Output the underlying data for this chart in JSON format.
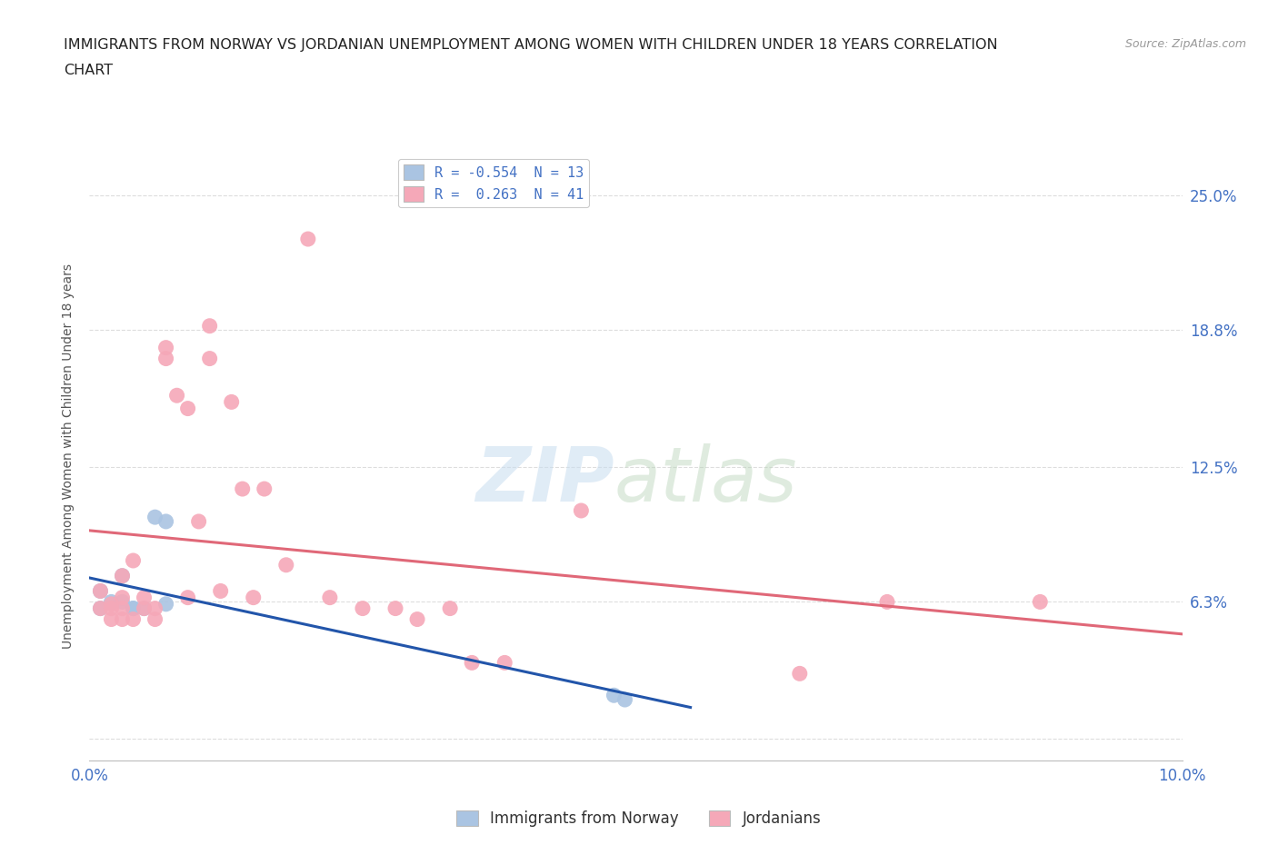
{
  "title_line1": "IMMIGRANTS FROM NORWAY VS JORDANIAN UNEMPLOYMENT AMONG WOMEN WITH CHILDREN UNDER 18 YEARS CORRELATION",
  "title_line2": "CHART",
  "source": "Source: ZipAtlas.com",
  "ylabel": "Unemployment Among Women with Children Under 18 years",
  "watermark_zip": "ZIP",
  "watermark_atlas": "atlas",
  "xlim": [
    0.0,
    0.1
  ],
  "ylim": [
    -0.01,
    0.27
  ],
  "yticks": [
    0.0,
    0.063,
    0.125,
    0.188,
    0.25
  ],
  "ytick_labels": [
    "",
    "6.3%",
    "12.5%",
    "18.8%",
    "25.0%"
  ],
  "xticks": [
    0.0,
    0.025,
    0.05,
    0.075,
    0.1
  ],
  "xtick_labels": [
    "0.0%",
    "",
    "",
    "",
    "10.0%"
  ],
  "norway_R": -0.554,
  "norway_N": 13,
  "jordan_R": 0.263,
  "jordan_N": 41,
  "norway_color": "#aac4e2",
  "jordan_color": "#f5a8b8",
  "norway_line_color": "#2255aa",
  "jordan_line_color": "#e06878",
  "norway_x": [
    0.001,
    0.001,
    0.002,
    0.003,
    0.003,
    0.004,
    0.004,
    0.005,
    0.006,
    0.007,
    0.007,
    0.048,
    0.049
  ],
  "norway_y": [
    0.068,
    0.06,
    0.063,
    0.075,
    0.063,
    0.06,
    0.06,
    0.06,
    0.102,
    0.1,
    0.062,
    0.02,
    0.018
  ],
  "jordan_x": [
    0.001,
    0.001,
    0.002,
    0.002,
    0.002,
    0.003,
    0.003,
    0.003,
    0.003,
    0.004,
    0.004,
    0.005,
    0.005,
    0.006,
    0.006,
    0.007,
    0.007,
    0.008,
    0.009,
    0.009,
    0.01,
    0.011,
    0.011,
    0.012,
    0.013,
    0.014,
    0.015,
    0.016,
    0.018,
    0.02,
    0.022,
    0.025,
    0.028,
    0.03,
    0.033,
    0.035,
    0.038,
    0.045,
    0.065,
    0.073,
    0.087
  ],
  "jordan_y": [
    0.06,
    0.068,
    0.055,
    0.06,
    0.062,
    0.055,
    0.06,
    0.065,
    0.075,
    0.055,
    0.082,
    0.06,
    0.065,
    0.055,
    0.06,
    0.175,
    0.18,
    0.158,
    0.065,
    0.152,
    0.1,
    0.175,
    0.19,
    0.068,
    0.155,
    0.115,
    0.065,
    0.115,
    0.08,
    0.23,
    0.065,
    0.06,
    0.06,
    0.055,
    0.06,
    0.035,
    0.035,
    0.105,
    0.03,
    0.063,
    0.063
  ],
  "background_color": "#ffffff",
  "grid_color": "#dddddd",
  "title_color": "#222222",
  "axis_label_color": "#555555",
  "tick_color": "#4472c4"
}
